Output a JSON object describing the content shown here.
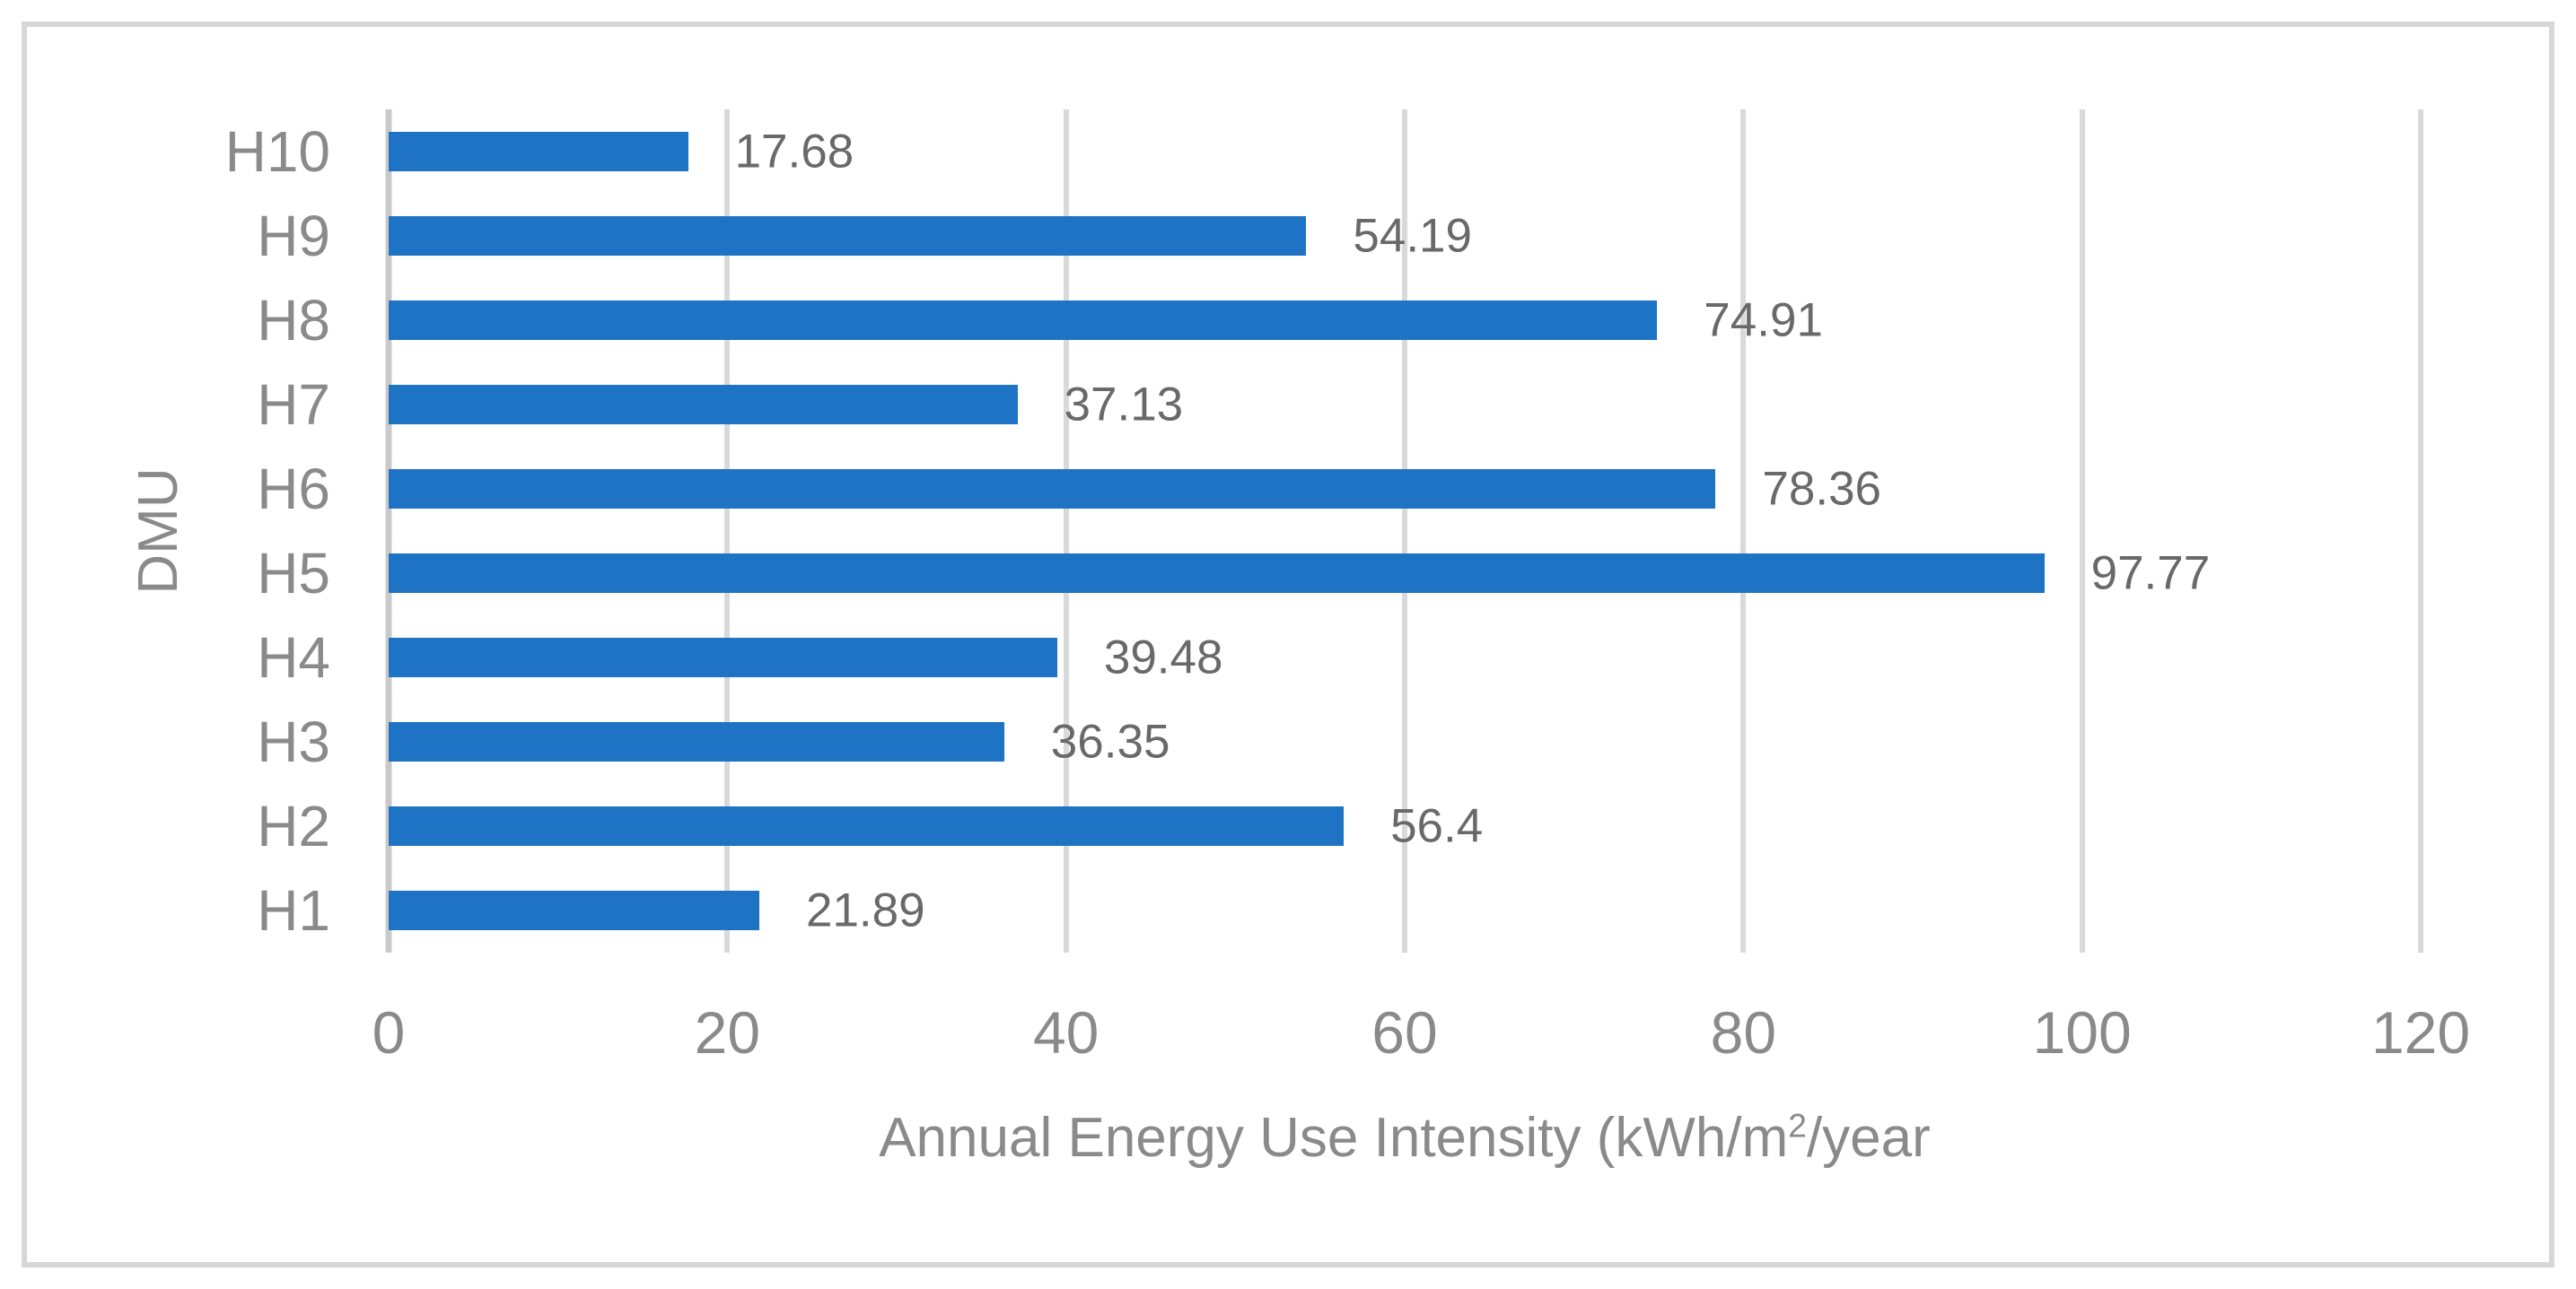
{
  "figure": {
    "background": "#ffffff",
    "border_color": "#d7d7d7"
  },
  "chart_data": {
    "type": "bar",
    "orientation": "horizontal",
    "title": "",
    "categories": [
      "H10",
      "H9",
      "H8",
      "H7",
      "H6",
      "H5",
      "H4",
      "H3",
      "H2",
      "H1"
    ],
    "values": [
      17.68,
      54.19,
      74.91,
      37.13,
      78.36,
      97.77,
      39.48,
      36.35,
      56.4,
      21.89
    ],
    "value_labels": [
      "17.68",
      "54.19",
      "74.91",
      "37.13",
      "78.36",
      "97.77",
      "39.48",
      "36.35",
      "56.4",
      "21.89"
    ],
    "x_ticks": [
      0,
      20,
      40,
      60,
      80,
      100,
      120
    ],
    "xlim": [
      0,
      120
    ],
    "grid": true,
    "legend": "none",
    "ylabel": "DMU",
    "xlabel_parts": {
      "prefix": "Annual Energy Use Intensity (kWh/m",
      "superscript": "2",
      "suffix": "/year"
    },
    "bar_color": "#1e73c5",
    "gridline_color": "#d9d9d9",
    "axis_text_color": "#8a8a8a",
    "value_label_color": "#696969"
  }
}
